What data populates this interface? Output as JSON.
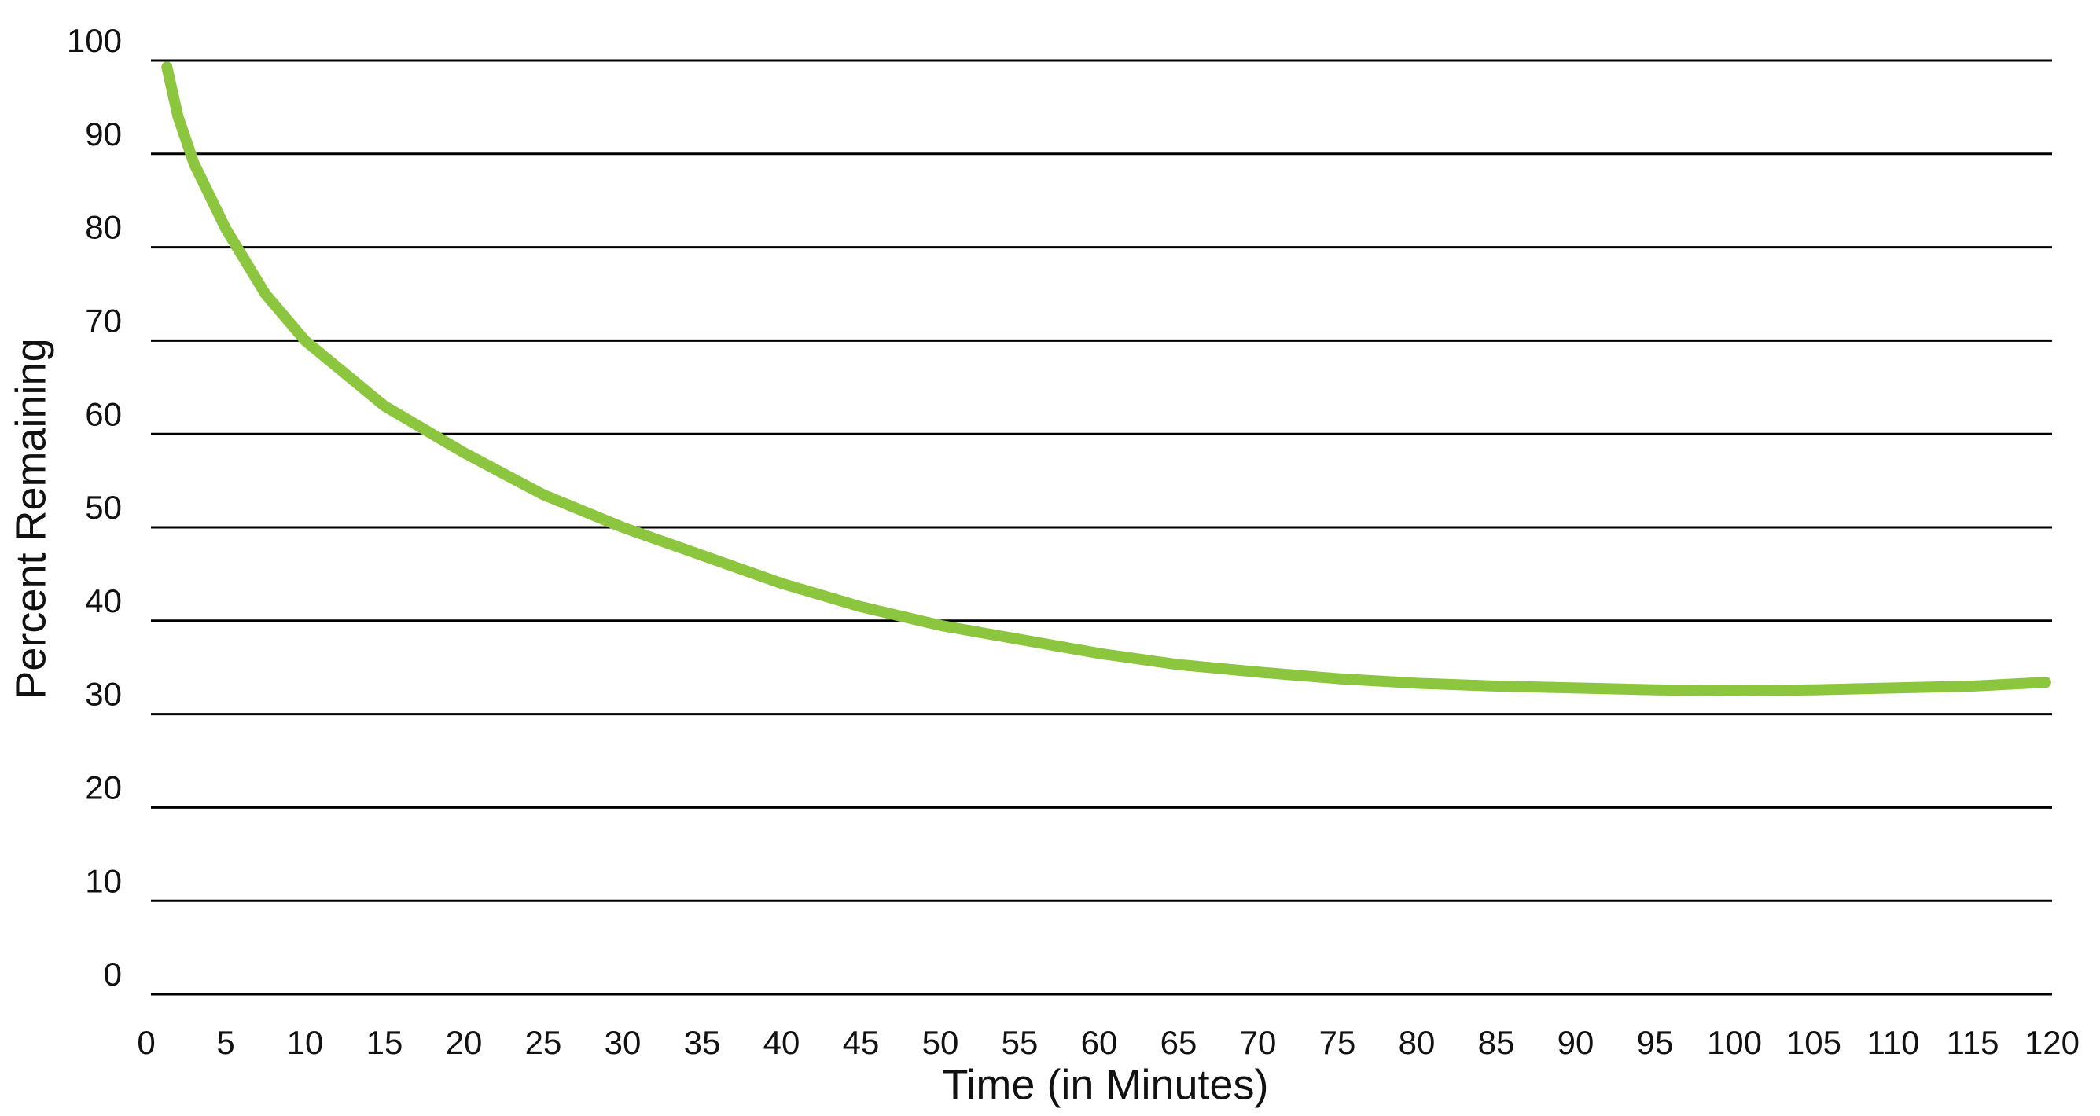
{
  "chart_data": {
    "type": "line",
    "x_label": "Time (in Minutes)",
    "y_label": "Percent Remaining",
    "x": [
      1.3,
      2,
      3,
      5,
      7.5,
      10,
      15,
      20,
      25,
      30,
      35,
      40,
      45,
      50,
      55,
      60,
      65,
      70,
      75,
      80,
      85,
      90,
      95,
      100,
      105,
      110,
      115,
      119.6
    ],
    "series": [
      {
        "name": "Percent Remaining",
        "color": "#8cc63f",
        "values": [
          99.3,
          94,
          89,
          82,
          75,
          70,
          63,
          58,
          53.5,
          50,
          47,
          44,
          41.5,
          39.5,
          38,
          36.5,
          35.3,
          34.5,
          33.8,
          33.3,
          33,
          32.8,
          32.6,
          32.5,
          32.6,
          32.8,
          33,
          33.4
        ]
      }
    ],
    "xlim": [
      0,
      120
    ],
    "xticks": [
      0,
      5,
      10,
      15,
      20,
      25,
      30,
      35,
      40,
      45,
      50,
      55,
      60,
      65,
      70,
      75,
      80,
      85,
      90,
      95,
      100,
      105,
      110,
      115,
      120
    ],
    "ylim": [
      0,
      100
    ],
    "yticks": [
      0,
      10,
      20,
      30,
      40,
      50,
      60,
      70,
      80,
      90,
      100
    ],
    "grid": true,
    "grid_color": "#000000"
  }
}
